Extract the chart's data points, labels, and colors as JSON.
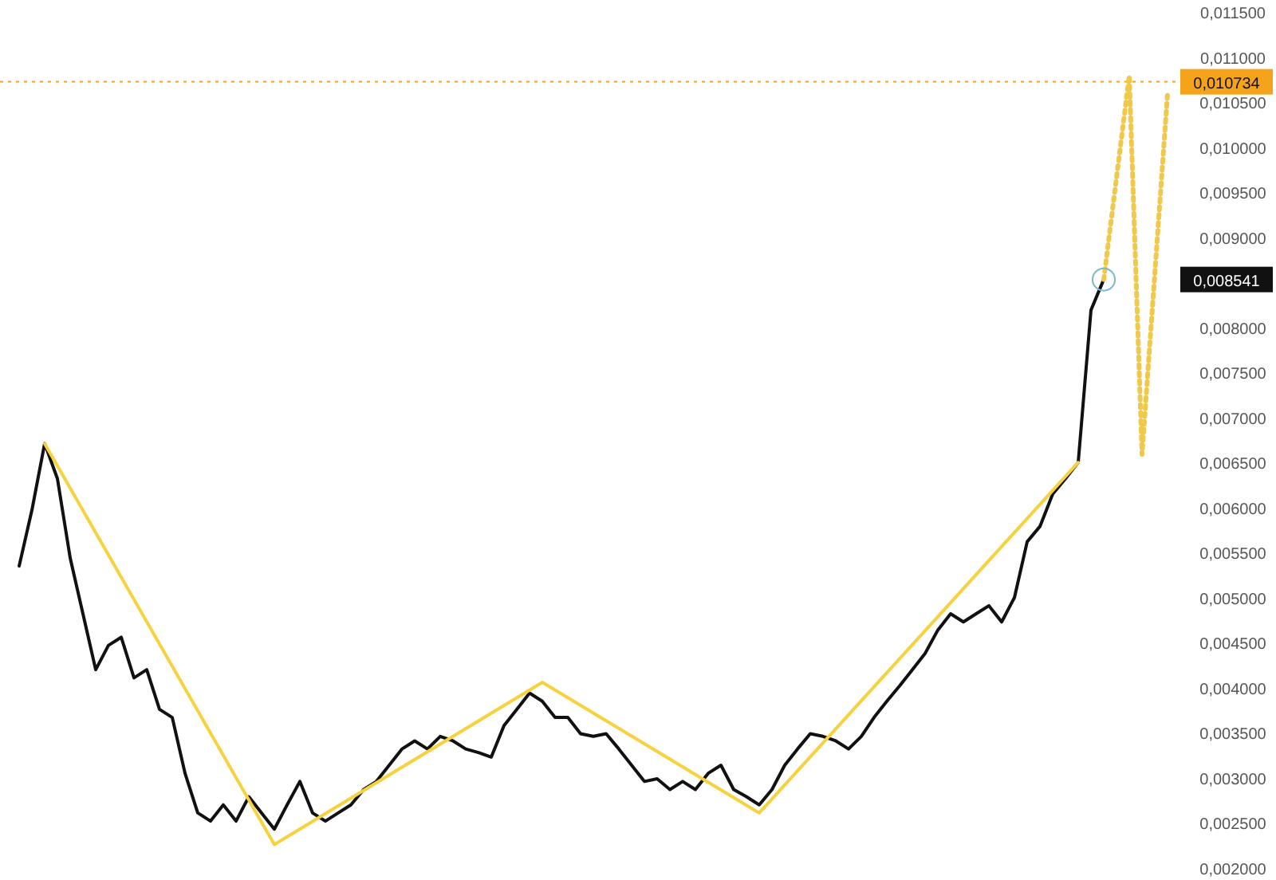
{
  "chart_data": {
    "type": "line",
    "tick_labels": "y",
    "grid": false,
    "categories": [
      null,
      null,
      null,
      null,
      null,
      null,
      null,
      null,
      null,
      null,
      null,
      null,
      null,
      null,
      null,
      null,
      null,
      null,
      null,
      null,
      null,
      null,
      null,
      null,
      null,
      null,
      null,
      null,
      null,
      null,
      null,
      null,
      null,
      null,
      null,
      null,
      null,
      null,
      null,
      null,
      null,
      null,
      null,
      null,
      null,
      null,
      null,
      null,
      null,
      null,
      null,
      null,
      null,
      null,
      null,
      null,
      null,
      null,
      null,
      null,
      null,
      null,
      null,
      null,
      null,
      null,
      null,
      null,
      null,
      null,
      null,
      null,
      null,
      null,
      null,
      null,
      null,
      null,
      null,
      null,
      null,
      null,
      null,
      null,
      null,
      null,
      null,
      null,
      null,
      null,
      null,
      null
    ],
    "ylim": [
      0.002,
      0.0115
    ],
    "yticks": [
      {
        "value": 0.002,
        "label": "0,002000"
      },
      {
        "value": 0.0025,
        "label": "0,002500"
      },
      {
        "value": 0.003,
        "label": "0,003000"
      },
      {
        "value": 0.0035,
        "label": "0,003500"
      },
      {
        "value": 0.004,
        "label": "0,004000"
      },
      {
        "value": 0.0045,
        "label": "0,004500"
      },
      {
        "value": 0.005,
        "label": "0,005000"
      },
      {
        "value": 0.0055,
        "label": "0,005500"
      },
      {
        "value": 0.006,
        "label": "0,006000"
      },
      {
        "value": 0.0065,
        "label": "0,006500"
      },
      {
        "value": 0.007,
        "label": "0,007000"
      },
      {
        "value": 0.0075,
        "label": "0,007500"
      },
      {
        "value": 0.008,
        "label": "0,008000"
      },
      {
        "value": 0.009,
        "label": "0,009000"
      },
      {
        "value": 0.0095,
        "label": "0,009500"
      },
      {
        "value": 0.01,
        "label": "0,010000"
      },
      {
        "value": 0.0105,
        "label": "0,010500"
      },
      {
        "value": 0.011,
        "label": "0,011000"
      },
      {
        "value": 0.0115,
        "label": "0,011500"
      }
    ],
    "series": [
      {
        "color": "#111111",
        "line_style": "solid",
        "values": [
          0.00536,
          0.00598,
          0.00672,
          0.00633,
          0.00545,
          0.00483,
          0.00421,
          0.00448,
          0.00457,
          0.00412,
          0.00421,
          0.00377,
          0.00368,
          0.00306,
          0.00262,
          0.00253,
          0.00271,
          0.00253,
          0.0028,
          0.00262,
          0.00244,
          0.00271,
          0.00297,
          0.00262,
          0.00253,
          0.00262,
          0.00271,
          0.00288,
          0.00297,
          0.00315,
          0.00333,
          0.00342,
          0.00333,
          0.00347,
          0.00342,
          0.00333,
          0.00329,
          0.00324,
          0.00359,
          0.00377,
          0.00395,
          0.00386,
          0.00368,
          0.00368,
          0.0035,
          0.00347,
          0.0035,
          0.00333,
          0.00315,
          0.00297,
          0.003,
          0.00288,
          0.00297,
          0.00288,
          0.00306,
          0.00315,
          0.00288,
          0.0028,
          0.00271,
          0.00288,
          0.00315,
          0.00333,
          0.0035,
          0.00347,
          0.00342,
          0.00333,
          0.00347,
          0.00368,
          0.00386,
          0.00403,
          0.00421,
          0.00439,
          0.00465,
          0.00483,
          0.00474,
          0.00483,
          0.00492,
          0.00474,
          0.00501,
          0.00563,
          0.0058,
          0.00616,
          0.00633,
          0.00651,
          0.0082,
          0.00854,
          null,
          null,
          null,
          null,
          null,
          null
        ]
      },
      {
        "color": "#f7d23e",
        "line_style": "solid",
        "values": [
          null,
          null,
          0.00672,
          null,
          null,
          null,
          null,
          null,
          null,
          null,
          null,
          null,
          null,
          null,
          null,
          null,
          null,
          null,
          null,
          null,
          0.00227,
          null,
          null,
          null,
          null,
          null,
          null,
          null,
          null,
          null,
          null,
          null,
          null,
          null,
          null,
          null,
          null,
          null,
          null,
          null,
          null,
          0.00407,
          null,
          null,
          null,
          null,
          null,
          null,
          null,
          null,
          null,
          null,
          null,
          null,
          null,
          null,
          null,
          null,
          0.00262,
          null,
          null,
          null,
          null,
          null,
          null,
          null,
          null,
          null,
          null,
          null,
          null,
          null,
          null,
          null,
          null,
          null,
          null,
          null,
          null,
          null,
          null,
          null,
          null,
          0.00651,
          null,
          null,
          null,
          null,
          null,
          null,
          null,
          null
        ]
      },
      {
        "color": "#f0c94a",
        "line_style": "dotted",
        "values": [
          null,
          null,
          null,
          null,
          null,
          null,
          null,
          null,
          null,
          null,
          null,
          null,
          null,
          null,
          null,
          null,
          null,
          null,
          null,
          null,
          null,
          null,
          null,
          null,
          null,
          null,
          null,
          null,
          null,
          null,
          null,
          null,
          null,
          null,
          null,
          null,
          null,
          null,
          null,
          null,
          null,
          null,
          null,
          null,
          null,
          null,
          null,
          null,
          null,
          null,
          null,
          null,
          null,
          null,
          null,
          null,
          null,
          null,
          null,
          null,
          null,
          null,
          null,
          null,
          null,
          null,
          null,
          null,
          null,
          null,
          null,
          null,
          null,
          null,
          null,
          null,
          null,
          null,
          null,
          null,
          null,
          null,
          null,
          null,
          null,
          0.00854,
          null,
          0.0108,
          0.0066,
          null,
          0.0106,
          null
        ]
      }
    ],
    "ref_lines": [
      {
        "axis": "y",
        "value": 0.010734,
        "label": "0,010734",
        "color": "#f5a31a",
        "line_style": "dotted"
      }
    ],
    "annotations": [
      "0,008541"
    ]
  }
}
